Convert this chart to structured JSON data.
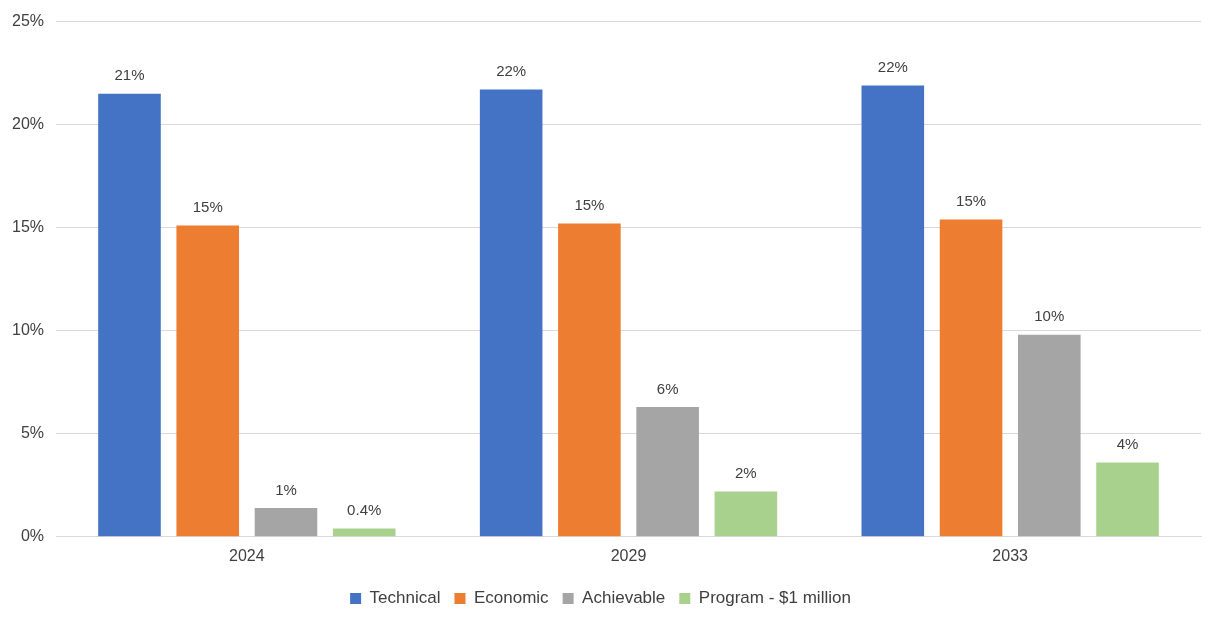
{
  "chart_data": {
    "type": "bar",
    "categories": [
      "2024",
      "2029",
      "2033"
    ],
    "series": [
      {
        "name": "Technical",
        "color": "#4472c4",
        "values": [
          21.5,
          21.7,
          21.9
        ],
        "value_labels": [
          "21%",
          "22%",
          "22%"
        ]
      },
      {
        "name": "Economic",
        "color": "#ed7d31",
        "values": [
          15.1,
          15.2,
          15.4
        ],
        "value_labels": [
          "15%",
          "15%",
          "15%"
        ]
      },
      {
        "name": "Achievable",
        "color": "#a5a5a5",
        "values": [
          1.4,
          6.3,
          9.8
        ],
        "value_labels": [
          "1%",
          "6%",
          "10%"
        ]
      },
      {
        "name": "Program - $1 million",
        "color": "#a9d18e",
        "values": [
          0.4,
          2.2,
          3.6
        ],
        "value_labels": [
          "0.4%",
          "2%",
          "4%"
        ]
      }
    ],
    "ylim": [
      0,
      25
    ],
    "yticks": [
      {
        "value": 0,
        "label": "0%"
      },
      {
        "value": 5,
        "label": "5%"
      },
      {
        "value": 10,
        "label": "10%"
      },
      {
        "value": 15,
        "label": "15%"
      },
      {
        "value": 20,
        "label": "20%"
      },
      {
        "value": 25,
        "label": "25%"
      }
    ],
    "grid": "y",
    "legend": "bottom"
  }
}
